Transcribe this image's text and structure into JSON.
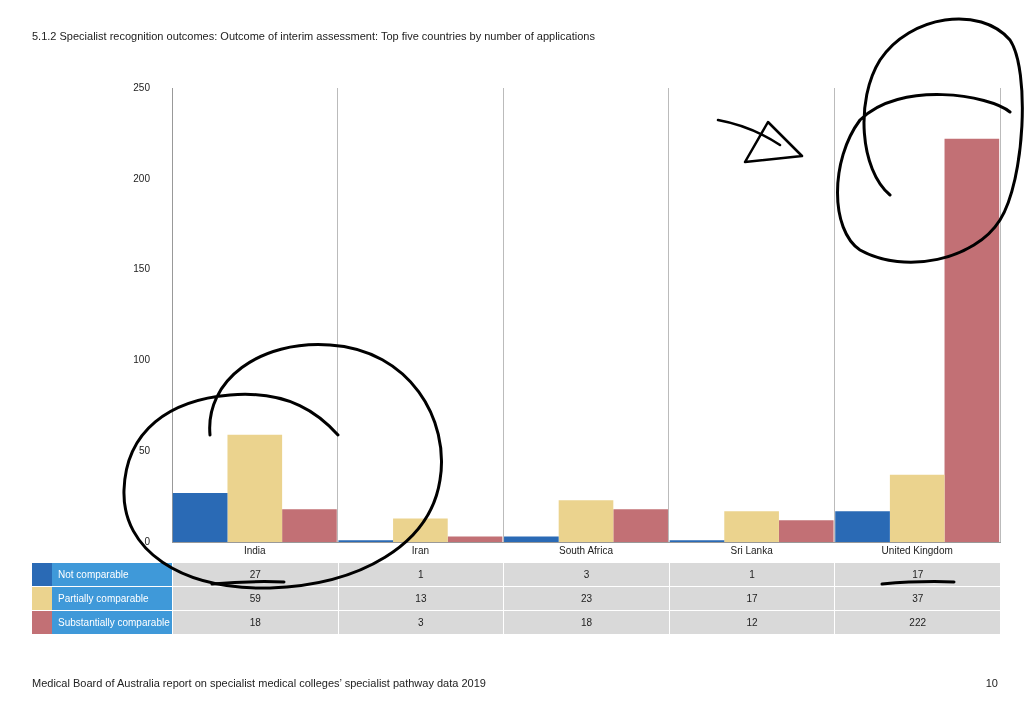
{
  "chart_data": {
    "type": "bar",
    "title": "5.1.2 Specialist recognition outcomes: Outcome of interim assessment: Top five countries by number of applications",
    "categories": [
      "India",
      "Iran",
      "South Africa",
      "Sri Lanka",
      "United Kingdom"
    ],
    "series": [
      {
        "name": "Not comparable",
        "color": "#2a6ab5",
        "values": [
          27,
          1,
          3,
          1,
          17
        ]
      },
      {
        "name": "Partially comparable",
        "color": "#ebd38e",
        "values": [
          59,
          13,
          23,
          17,
          37
        ]
      },
      {
        "name": "Substantially comparable",
        "color": "#c27075",
        "values": [
          18,
          3,
          18,
          12,
          222
        ]
      }
    ],
    "ylim": [
      0,
      250
    ],
    "yticks": [
      0,
      50,
      100,
      150,
      200,
      250
    ],
    "grid": "x",
    "legend": "bottom left",
    "data_labels": true,
    "annotations": [
      "Medical Board of Australia report on specialist medical colleges’ specialist pathway data 2019",
      "10"
    ]
  }
}
